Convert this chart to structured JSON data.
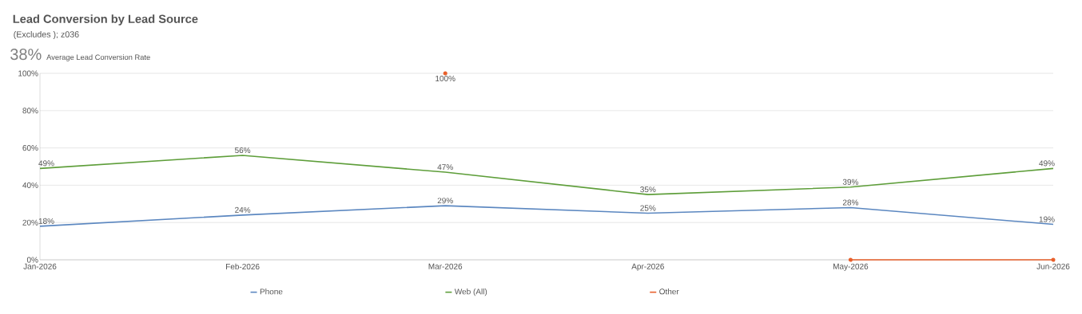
{
  "chart_data": {
    "type": "line",
    "title": "Lead Conversion by Lead Source",
    "subtitle": "(Excludes ); z036",
    "annotations": [
      "38%",
      "Average Lead Conversion Rate"
    ],
    "categories": [
      "Jan-2026",
      "Feb-2026",
      "Mar-2026",
      "Apr-2026",
      "May-2026",
      "Jun-2026"
    ],
    "series": [
      {
        "name": "Phone",
        "color": "#5b87c0",
        "values": [
          18,
          24,
          29,
          25,
          28,
          19
        ],
        "value_labels": [
          "18%",
          "24%",
          "29%",
          "25%",
          "28%",
          "19%"
        ]
      },
      {
        "name": "Web (All)",
        "color": "#5e9e3a",
        "values": [
          49,
          56,
          47,
          35,
          39,
          49
        ],
        "value_labels": [
          "49%",
          "56%",
          "47%",
          "35%",
          "39%",
          "49%"
        ]
      },
      {
        "name": "Other",
        "color": "#e8602c",
        "values": [
          null,
          null,
          100,
          null,
          0,
          0
        ],
        "value_labels": [
          null,
          null,
          "100%",
          null,
          null,
          null
        ],
        "marker": "circle"
      }
    ],
    "ylim": [
      0,
      100
    ],
    "yticks": [
      {
        "value": 0,
        "label": "0%"
      },
      {
        "value": 20,
        "label": "20%"
      },
      {
        "value": 40,
        "label": "40%"
      },
      {
        "value": 60,
        "label": "60%"
      },
      {
        "value": 80,
        "label": "80%"
      },
      {
        "value": 100,
        "label": "100%"
      }
    ],
    "grid": "y",
    "legend": "bottom",
    "marker": "none",
    "line_style": "solid"
  }
}
